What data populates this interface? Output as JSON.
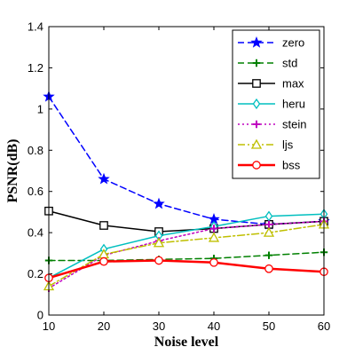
{
  "chart_data": {
    "type": "line",
    "title": "",
    "xlabel": "Noise level",
    "ylabel": "PSNR(dB)",
    "x": [
      10,
      20,
      30,
      40,
      50,
      60
    ],
    "xlim": [
      10,
      60
    ],
    "ylim": [
      0,
      1.4
    ],
    "xticks": [
      10,
      20,
      30,
      40,
      50,
      60
    ],
    "yticks": [
      0,
      0.2,
      0.4,
      0.6,
      0.8,
      1,
      1.2,
      1.4
    ],
    "grid": false,
    "legend_position": "top-right",
    "series": [
      {
        "name": "zero",
        "values": [
          1.06,
          0.66,
          0.54,
          0.465,
          0.44,
          0.455
        ],
        "color": "#0000ff",
        "dash": "dashed",
        "marker": "star",
        "width": 1.5
      },
      {
        "name": "std",
        "values": [
          0.265,
          0.265,
          0.27,
          0.275,
          0.29,
          0.305
        ],
        "color": "#008000",
        "dash": "dashed",
        "marker": "plus",
        "width": 1.5
      },
      {
        "name": "max",
        "values": [
          0.505,
          0.435,
          0.405,
          0.42,
          0.44,
          0.455
        ],
        "color": "#000000",
        "dash": "solid",
        "marker": "square",
        "width": 1.5
      },
      {
        "name": "heru",
        "values": [
          0.18,
          0.32,
          0.385,
          0.43,
          0.48,
          0.49
        ],
        "color": "#00bfbf",
        "dash": "solid",
        "marker": "diamond",
        "width": 1.5
      },
      {
        "name": "stein",
        "values": [
          0.13,
          0.29,
          0.36,
          0.42,
          0.44,
          0.455
        ],
        "color": "#bf00bf",
        "dash": "dotted",
        "marker": "plus",
        "width": 1.5
      },
      {
        "name": "ljs",
        "values": [
          0.14,
          0.295,
          0.35,
          0.375,
          0.4,
          0.44
        ],
        "color": "#bfbf00",
        "dash": "dashdot",
        "marker": "triangle",
        "width": 1.5
      },
      {
        "name": "bss",
        "values": [
          0.18,
          0.26,
          0.265,
          0.255,
          0.225,
          0.21
        ],
        "color": "#ff0000",
        "dash": "solid",
        "marker": "circle",
        "width": 2.5
      }
    ]
  }
}
